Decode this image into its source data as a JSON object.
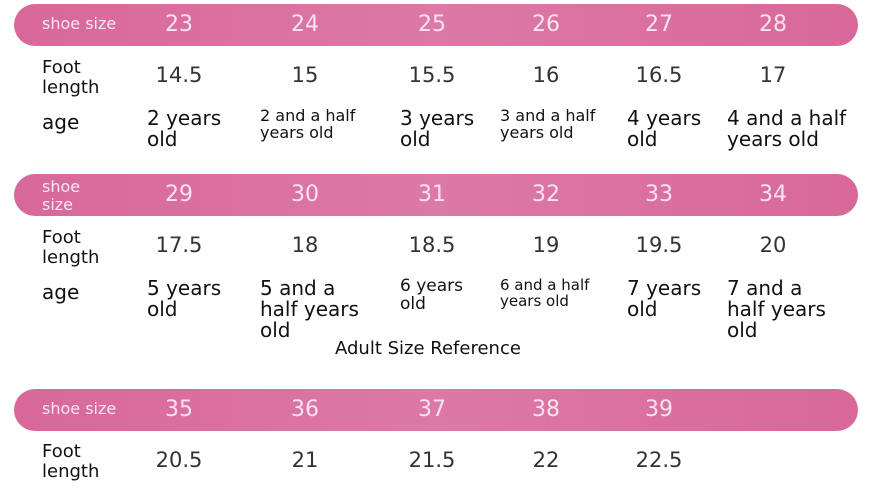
{
  "sections": [
    {
      "header_label": "shoe size",
      "sizes": [
        23,
        24,
        25,
        26,
        27,
        28
      ],
      "foot_label": "Foot length",
      "foot_lengths": [
        14.5,
        15,
        15.5,
        16,
        16.5,
        17
      ],
      "age_label": "age",
      "ages": [
        "2 years old",
        "2 and a half years old",
        "3 years old",
        "3 and a half years old",
        "4 years old",
        "4 and a half years old"
      ]
    },
    {
      "header_label": "shoe size",
      "sizes": [
        29,
        30,
        31,
        32,
        33,
        34
      ],
      "foot_label": "Foot length",
      "foot_lengths": [
        17.5,
        18,
        18.5,
        19,
        19.5,
        20
      ],
      "age_label": "age",
      "ages": [
        "5 years old",
        "5 and a half years old",
        "6 years old",
        "6 and a half years old",
        "7 years old",
        "7 and a half years old"
      ]
    },
    {
      "header_label": "shoe size",
      "sizes": [
        35,
        36,
        37,
        38,
        39
      ],
      "foot_label": "Foot length",
      "foot_lengths": [
        20.5,
        21,
        21.5,
        22,
        22.5
      ]
    }
  ],
  "adult_title": "Adult Size Reference"
}
